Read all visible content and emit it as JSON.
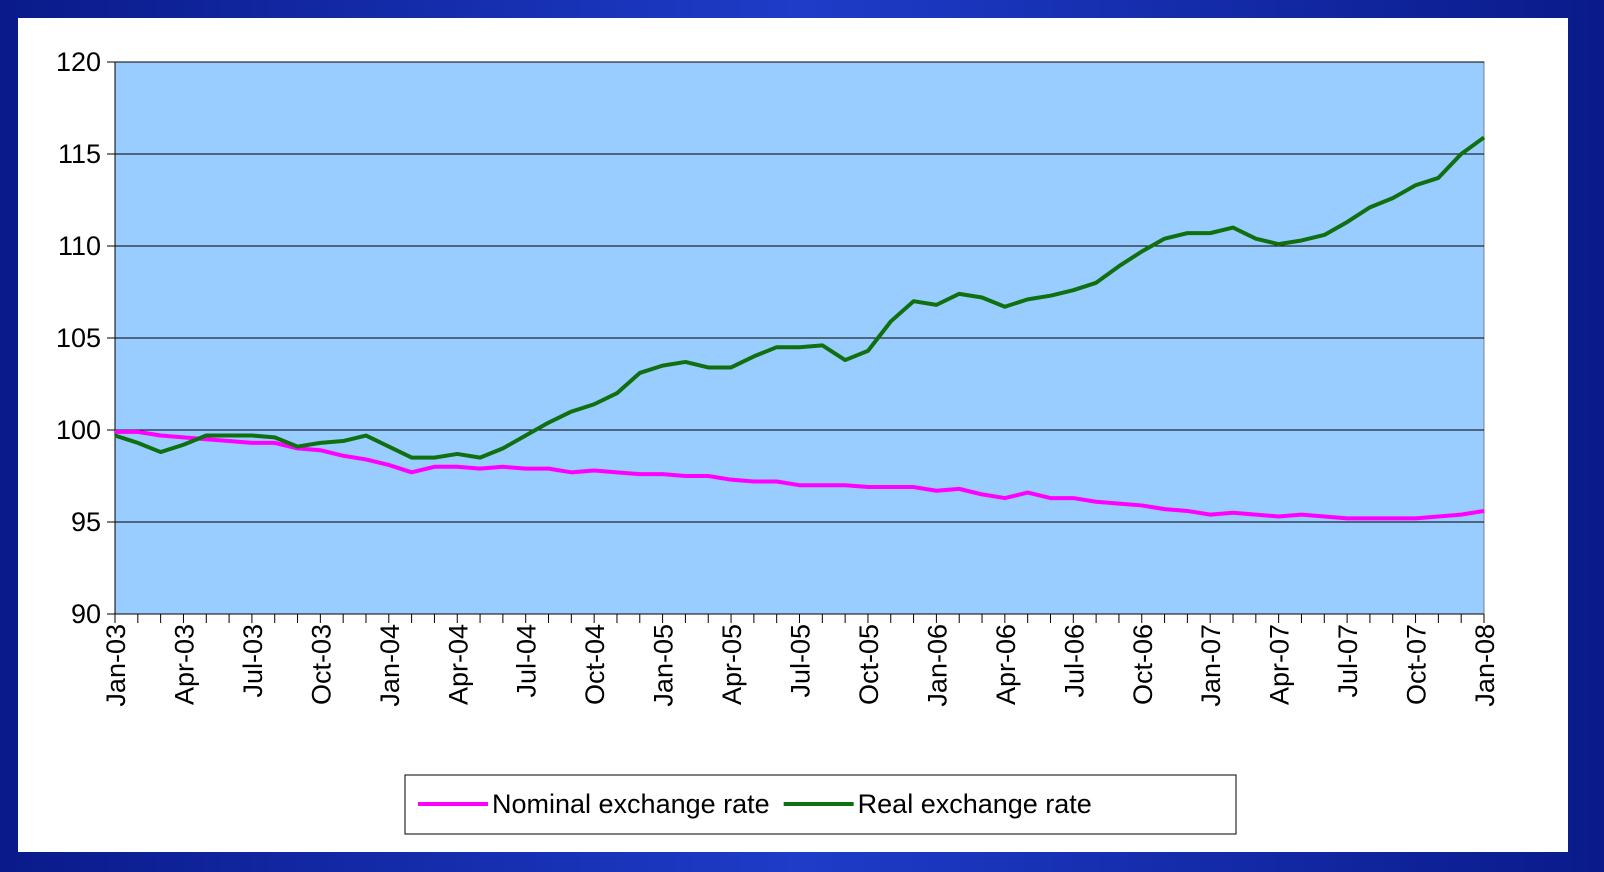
{
  "chart_data": {
    "type": "line",
    "categories": [
      "Jan-03",
      null,
      null,
      "Apr-03",
      null,
      null,
      "Jul-03",
      null,
      null,
      "Oct-03",
      null,
      null,
      "Jan-04",
      null,
      null,
      "Apr-04",
      null,
      null,
      "Jul-04",
      null,
      null,
      "Oct-04",
      null,
      null,
      "Jan-05",
      null,
      null,
      "Apr-05",
      null,
      null,
      "Jul-05",
      null,
      null,
      "Oct-05",
      null,
      null,
      "Jan-06",
      null,
      null,
      "Apr-06",
      null,
      null,
      "Jul-06",
      null,
      null,
      "Oct-06",
      null,
      null,
      "Jan-07",
      null,
      null,
      "Apr-07",
      null,
      null,
      "Jul-07",
      null,
      null,
      "Oct-07",
      null,
      null,
      "Jan-08"
    ],
    "series": [
      {
        "name": "Nominal exchange rate",
        "color": "#ff00ff",
        "values": [
          99.9,
          99.9,
          99.7,
          99.6,
          99.5,
          99.4,
          99.3,
          99.3,
          99.0,
          98.9,
          98.6,
          98.4,
          98.1,
          97.7,
          98.0,
          98.0,
          97.9,
          98.0,
          97.9,
          97.9,
          97.7,
          97.8,
          97.7,
          97.6,
          97.6,
          97.5,
          97.5,
          97.3,
          97.2,
          97.2,
          97.0,
          97.0,
          97.0,
          96.9,
          96.9,
          96.9,
          96.7,
          96.8,
          96.5,
          96.3,
          96.6,
          96.3,
          96.3,
          96.1,
          96.0,
          95.9,
          95.7,
          95.6,
          95.4,
          95.5,
          95.4,
          95.3,
          95.4,
          95.3,
          95.2,
          95.2,
          95.2,
          95.2,
          95.3,
          95.4,
          95.6
        ]
      },
      {
        "name": "Real exchange rate",
        "color": "#107010",
        "values": [
          99.7,
          99.3,
          98.8,
          99.2,
          99.7,
          99.7,
          99.7,
          99.6,
          99.1,
          99.3,
          99.4,
          99.7,
          99.1,
          98.5,
          98.5,
          98.7,
          98.5,
          99.0,
          99.7,
          100.4,
          101.0,
          101.4,
          102.0,
          103.1,
          103.5,
          103.7,
          103.4,
          103.4,
          104.0,
          104.5,
          104.5,
          104.6,
          103.8,
          104.3,
          105.9,
          107.0,
          106.8,
          107.4,
          107.2,
          106.7,
          107.1,
          107.3,
          107.6,
          108.0,
          108.9,
          109.7,
          110.4,
          110.7,
          110.7,
          111.0,
          110.4,
          110.1,
          110.3,
          110.6,
          111.3,
          112.1,
          112.6,
          113.3,
          113.7,
          115.0,
          115.9
        ]
      }
    ],
    "ylim": [
      90,
      120
    ],
    "yticks": [
      90,
      95,
      100,
      105,
      110,
      115,
      120
    ],
    "grid": true,
    "plot_color": "#99ccff",
    "legend": "bottom"
  }
}
